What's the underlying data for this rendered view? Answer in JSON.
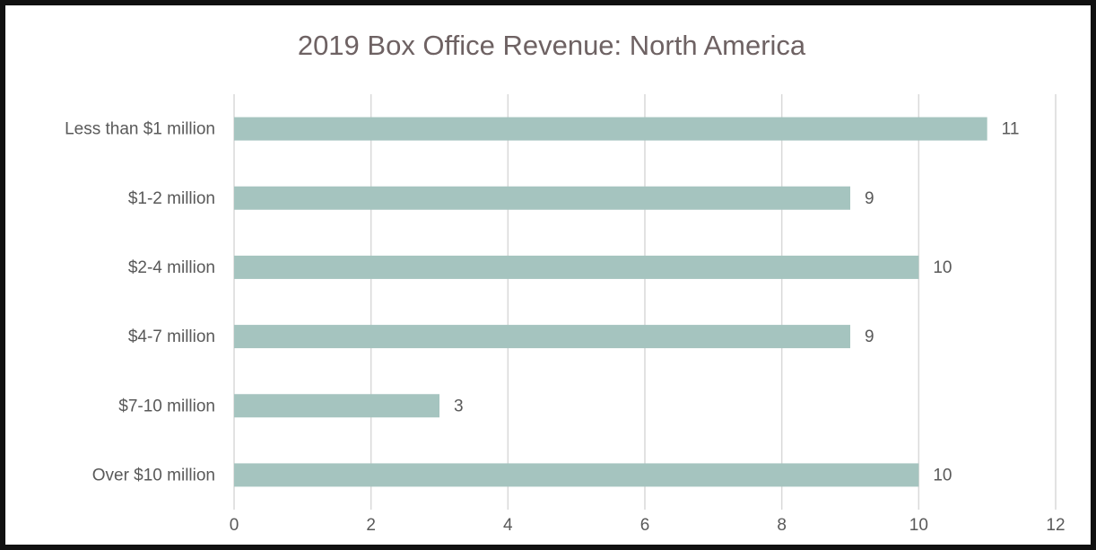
{
  "chart_data": {
    "type": "bar",
    "orientation": "horizontal",
    "title": "2019 Box Office Revenue: North America",
    "categories": [
      "Less than $1 million",
      "$1-2 million",
      "$2-4 million",
      "$4-7 million",
      "$7-10 million",
      "Over $10 million"
    ],
    "values": [
      11,
      9,
      10,
      9,
      3,
      10
    ],
    "color": "#a5c4bf",
    "xlim": [
      0,
      12
    ],
    "xticks": [
      0,
      2,
      4,
      6,
      8,
      10,
      12
    ],
    "grid": true,
    "data_labels": true
  }
}
